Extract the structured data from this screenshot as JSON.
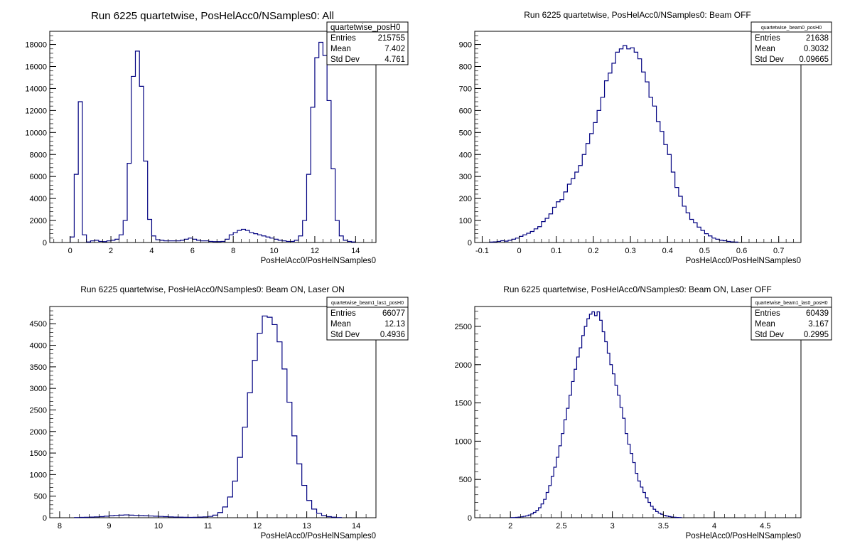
{
  "chart_data": [
    {
      "type": "histogram",
      "title": "Run 6225 quartetwise, PosHelAcc0/NSamples0: All",
      "xlabel": "PosHelAcc0/PosHelNSamples0",
      "ylabel": "",
      "xlim": [
        -1,
        15
      ],
      "ylim": [
        0,
        19200
      ],
      "x_ticks": [
        0,
        2,
        4,
        6,
        8,
        10,
        12,
        14
      ],
      "y_ticks": [
        0,
        2000,
        4000,
        6000,
        8000,
        10000,
        12000,
        14000,
        16000,
        18000
      ],
      "line_color": "#000080",
      "stats": {
        "name": "quartetwise_posH0",
        "entries": "215755",
        "mean": "7.402",
        "std_dev": "4.761"
      },
      "stat_labels": {
        "entries": "Entries",
        "mean": "Mean",
        "std_dev": "Std Dev"
      },
      "bins": {
        "edges_start": 0,
        "bin_width": 0.2,
        "values": [
          500,
          6200,
          12800,
          700,
          50,
          150,
          200,
          100,
          80,
          150,
          200,
          300,
          700,
          2000,
          7200,
          15100,
          17400,
          14200,
          7400,
          2100,
          600,
          250,
          200,
          150,
          150,
          150,
          150,
          200,
          300,
          400,
          300,
          200,
          150,
          150,
          100,
          80,
          80,
          100,
          300,
          700,
          900,
          1100,
          1200,
          1100,
          900,
          800,
          700,
          600,
          500,
          400,
          300,
          200,
          150,
          100,
          100,
          200,
          600,
          2000,
          6200,
          12300,
          16800,
          18200,
          17000,
          12900,
          6700,
          2000,
          600,
          200,
          100,
          50
        ]
      }
    },
    {
      "type": "histogram",
      "title": "Run 6225 quartetwise, PosHelAcc0/NSamples0: Beam OFF",
      "xlabel": "PosHelAcc0/PosHelNSamples0",
      "ylabel": "",
      "xlim": [
        -0.12,
        0.76
      ],
      "ylim": [
        0,
        960
      ],
      "x_ticks": [
        -0.1,
        0,
        0.1,
        0.2,
        0.3,
        0.4,
        0.5,
        0.6,
        0.7
      ],
      "x_tick_labels": [
        "-0.1",
        "0",
        "0.1",
        "0.2",
        "0.3",
        "0.4",
        "0.5",
        "0.6",
        "0.7"
      ],
      "y_ticks": [
        0,
        100,
        200,
        300,
        400,
        500,
        600,
        700,
        800,
        900
      ],
      "line_color": "#000080",
      "stats": {
        "name": "quartetwise_beam0_posH0",
        "entries": "21638",
        "mean": "0.3032",
        "std_dev": "0.09665"
      },
      "stat_labels": {
        "entries": "Entries",
        "mean": "Mean",
        "std_dev": "Std Dev"
      },
      "bins": {
        "edges_start": -0.08,
        "bin_width": 0.01,
        "values": [
          2,
          3,
          5,
          8,
          6,
          10,
          15,
          20,
          28,
          35,
          42,
          50,
          62,
          72,
          95,
          110,
          130,
          160,
          185,
          195,
          230,
          265,
          290,
          320,
          350,
          400,
          450,
          495,
          545,
          600,
          660,
          735,
          770,
          815,
          865,
          880,
          895,
          880,
          885,
          865,
          835,
          775,
          730,
          660,
          620,
          550,
          505,
          445,
          400,
          320,
          250,
          210,
          165,
          135,
          105,
          90,
          70,
          55,
          40,
          30,
          20,
          15,
          10,
          8,
          5,
          3,
          2
        ]
      }
    },
    {
      "type": "histogram",
      "title": "Run 6225 quartetwise, PosHelAcc0/NSamples0: Beam ON, Laser ON",
      "xlabel": "PosHelAcc0/PosHelNSamples0",
      "ylabel": "",
      "xlim": [
        7.8,
        14.4
      ],
      "ylim": [
        0,
        4900
      ],
      "x_ticks": [
        8,
        9,
        10,
        11,
        12,
        13,
        14
      ],
      "y_ticks": [
        0,
        500,
        1000,
        1500,
        2000,
        2500,
        3000,
        3500,
        4000,
        4500
      ],
      "line_color": "#000080",
      "stats": {
        "name": "quartetwise_beam1_las1_posH0",
        "entries": "66077",
        "mean": "12.13",
        "std_dev": "0.4936"
      },
      "stat_labels": {
        "entries": "Entries",
        "mean": "Mean",
        "std_dev": "Std Dev"
      },
      "bins": {
        "edges_start": 8.3,
        "bin_width": 0.1,
        "values": [
          5,
          8,
          10,
          15,
          20,
          25,
          35,
          45,
          55,
          60,
          65,
          60,
          55,
          50,
          45,
          40,
          35,
          30,
          25,
          20,
          15,
          12,
          10,
          8,
          10,
          15,
          20,
          30,
          60,
          120,
          250,
          480,
          850,
          1400,
          2100,
          2900,
          3650,
          4280,
          4680,
          4650,
          4480,
          4080,
          3450,
          2680,
          1900,
          1250,
          750,
          400,
          200,
          100,
          50,
          25,
          12,
          5
        ]
      }
    },
    {
      "type": "histogram",
      "title": "Run 6225 quartetwise, PosHelAcc0/NSamples0: Beam ON, Laser OFF",
      "xlabel": "PosHelAcc0/PosHelNSamples0",
      "ylabel": "",
      "xlim": [
        1.65,
        4.85
      ],
      "ylim": [
        0,
        2760
      ],
      "x_ticks": [
        2,
        2.5,
        3,
        3.5,
        4,
        4.5
      ],
      "x_tick_labels": [
        "2",
        "2.5",
        "3",
        "3.5",
        "4",
        "4.5"
      ],
      "y_ticks": [
        0,
        500,
        1000,
        1500,
        2000,
        2500
      ],
      "line_color": "#000080",
      "stats": {
        "name": "quartetwise_beam1_las0_posH0",
        "entries": "60439",
        "mean": "3.167",
        "std_dev": "0.2995"
      },
      "stat_labels": {
        "entries": "Entries",
        "mean": "Mean",
        "std_dev": "Std Dev"
      },
      "bins": {
        "edges_start": 2.0,
        "bin_width": 0.025,
        "values": [
          2,
          3,
          5,
          8,
          12,
          18,
          25,
          35,
          50,
          70,
          95,
          130,
          180,
          240,
          330,
          420,
          540,
          660,
          790,
          940,
          1100,
          1280,
          1430,
          1600,
          1780,
          1940,
          2100,
          2220,
          2380,
          2500,
          2600,
          2660,
          2690,
          2640,
          2690,
          2580,
          2430,
          2300,
          2150,
          2000,
          1880,
          1730,
          1600,
          1440,
          1300,
          1100,
          960,
          840,
          720,
          580,
          480,
          400,
          330,
          260,
          200,
          150,
          110,
          80,
          60,
          45,
          32,
          22,
          15,
          10,
          6,
          4,
          2
        ]
      }
    }
  ]
}
